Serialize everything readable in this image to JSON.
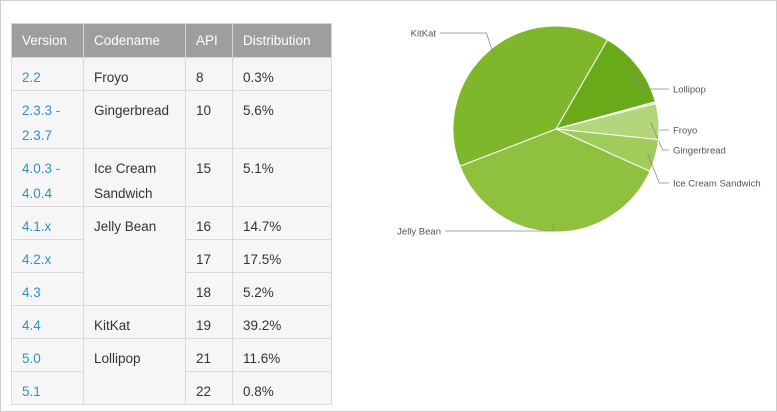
{
  "table": {
    "headers": [
      "Version",
      "Codename",
      "API",
      "Distribution"
    ],
    "rows": [
      {
        "version": "2.2",
        "codename": "Froyo",
        "api": "8",
        "distribution": "0.3%"
      },
      {
        "version": "2.3.3 -\n2.3.7",
        "codename": "Gingerbread",
        "api": "10",
        "distribution": "5.6%"
      },
      {
        "version": "4.0.3 -\n4.0.4",
        "codename": "Ice Cream\nSandwich",
        "api": "15",
        "distribution": "5.1%"
      },
      {
        "version": "4.1.x",
        "codename": "Jelly Bean",
        "api": "16",
        "distribution": "14.7%"
      },
      {
        "version": "4.2.x",
        "codename": "",
        "api": "17",
        "distribution": "17.5%"
      },
      {
        "version": "4.3",
        "codename": "",
        "api": "18",
        "distribution": "5.2%"
      },
      {
        "version": "4.4",
        "codename": "KitKat",
        "api": "19",
        "distribution": "39.2%"
      },
      {
        "version": "5.0",
        "codename": "Lollipop",
        "api": "21",
        "distribution": "11.6%"
      },
      {
        "version": "5.1",
        "codename": "",
        "api": "22",
        "distribution": "0.8%"
      }
    ]
  },
  "chart_data": {
    "type": "pie",
    "slices": [
      {
        "label": "Lollipop",
        "value": 12.4,
        "color": "#6aa918"
      },
      {
        "label": "Froyo",
        "value": 0.3,
        "color": "#c8e19c"
      },
      {
        "label": "Gingerbread",
        "value": 5.6,
        "color": "#b3d67a"
      },
      {
        "label": "Ice Cream Sandwich",
        "value": 5.1,
        "color": "#a0cc5c"
      },
      {
        "label": "Jelly Bean",
        "value": 37.4,
        "color": "#8fc13f"
      },
      {
        "label": "KitKat",
        "value": 39.2,
        "color": "#7eb72a"
      }
    ],
    "start_angle_deg": -60,
    "legend": "callout-labels"
  }
}
